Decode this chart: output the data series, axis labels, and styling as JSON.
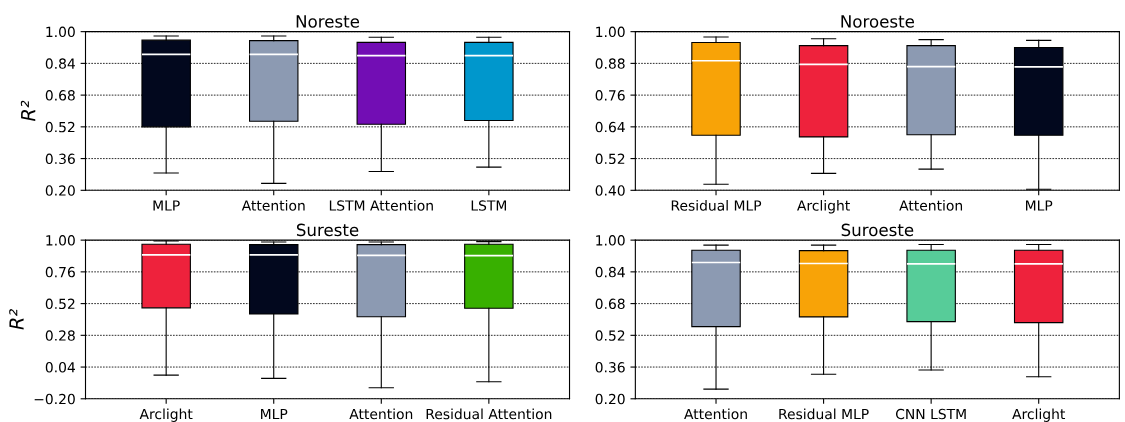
{
  "chart_data": [
    {
      "type": "box",
      "title": "Noreste",
      "ylabel": "R²",
      "categories": [
        "MLP",
        "Attention",
        "LSTM Attention",
        "LSTM"
      ],
      "colors": [
        "#02081e",
        "#8c9ab2",
        "#720db4",
        "#0097cc"
      ],
      "ylim": [
        0.2,
        1.0
      ],
      "yticks": [
        {
          "value": 0.2,
          "label": "0.20"
        },
        {
          "value": 0.36,
          "label": "0.36"
        },
        {
          "value": 0.52,
          "label": "0.52"
        },
        {
          "value": 0.68,
          "label": "0.68"
        },
        {
          "value": 0.84,
          "label": "0.84"
        },
        {
          "value": 1.0,
          "label": "1.00"
        }
      ],
      "grid": "y",
      "boxes": [
        {
          "low": 0.287,
          "q1": 0.52,
          "median": 0.885,
          "q3": 0.957,
          "high": 0.978
        },
        {
          "low": 0.235,
          "q1": 0.548,
          "median": 0.885,
          "q3": 0.955,
          "high": 0.978
        },
        {
          "low": 0.295,
          "q1": 0.533,
          "median": 0.879,
          "q3": 0.946,
          "high": 0.972
        },
        {
          "low": 0.317,
          "q1": 0.552,
          "median": 0.879,
          "q3": 0.946,
          "high": 0.972
        }
      ]
    },
    {
      "type": "box",
      "title": "Noroeste",
      "categories": [
        "Residual MLP",
        "Arclight",
        "Attention",
        "MLP"
      ],
      "colors": [
        "#f8a307",
        "#ee223c",
        "#8c9ab2",
        "#02081e"
      ],
      "ylim": [
        0.4,
        1.0
      ],
      "yticks": [
        {
          "value": 0.4,
          "label": "0.40"
        },
        {
          "value": 0.52,
          "label": "0.52"
        },
        {
          "value": 0.64,
          "label": "0.64"
        },
        {
          "value": 0.76,
          "label": "0.76"
        },
        {
          "value": 0.88,
          "label": "0.88"
        },
        {
          "value": 1.0,
          "label": "1.00"
        }
      ],
      "grid": "y",
      "boxes": [
        {
          "low": 0.423,
          "q1": 0.608,
          "median": 0.89,
          "q3": 0.959,
          "high": 0.98
        },
        {
          "low": 0.464,
          "q1": 0.602,
          "median": 0.876,
          "q3": 0.947,
          "high": 0.973
        },
        {
          "low": 0.48,
          "q1": 0.61,
          "median": 0.868,
          "q3": 0.947,
          "high": 0.97
        },
        {
          "low": 0.404,
          "q1": 0.608,
          "median": 0.867,
          "q3": 0.94,
          "high": 0.967
        }
      ]
    },
    {
      "type": "box",
      "title": "Sureste",
      "ylabel": "R²",
      "categories": [
        "Arclight",
        "MLP",
        "Attention",
        "Residual Attention"
      ],
      "colors": [
        "#ee223c",
        "#02081e",
        "#8c9ab2",
        "#38b000"
      ],
      "ylim": [
        -0.2,
        1.0
      ],
      "yticks": [
        {
          "value": -0.2,
          "label": "−0.20"
        },
        {
          "value": 0.04,
          "label": "0.04"
        },
        {
          "value": 0.28,
          "label": "0.28"
        },
        {
          "value": 0.52,
          "label": "0.52"
        },
        {
          "value": 0.76,
          "label": "0.76"
        },
        {
          "value": 1.0,
          "label": "1.00"
        }
      ],
      "grid": "y",
      "boxes": [
        {
          "low": -0.021,
          "q1": 0.488,
          "median": 0.888,
          "q3": 0.969,
          "high": 0.994
        },
        {
          "low": -0.046,
          "q1": 0.441,
          "median": 0.888,
          "q3": 0.966,
          "high": 0.986
        },
        {
          "low": -0.116,
          "q1": 0.421,
          "median": 0.885,
          "q3": 0.966,
          "high": 0.986
        },
        {
          "low": -0.071,
          "q1": 0.485,
          "median": 0.883,
          "q3": 0.969,
          "high": 0.989
        }
      ]
    },
    {
      "type": "box",
      "title": "Suroeste",
      "categories": [
        "Attention",
        "Residual MLP",
        "CNN LSTM",
        "Arclight"
      ],
      "colors": [
        "#8c9ab2",
        "#f8a307",
        "#57cc99",
        "#ee223c"
      ],
      "ylim": [
        0.2,
        1.0
      ],
      "yticks": [
        {
          "value": 0.2,
          "label": "0.20"
        },
        {
          "value": 0.36,
          "label": "0.36"
        },
        {
          "value": 0.52,
          "label": "0.52"
        },
        {
          "value": 0.68,
          "label": "0.68"
        },
        {
          "value": 0.84,
          "label": "0.84"
        },
        {
          "value": 1.0,
          "label": "1.00"
        }
      ],
      "grid": "y",
      "boxes": [
        {
          "low": 0.249,
          "q1": 0.564,
          "median": 0.887,
          "q3": 0.949,
          "high": 0.975
        },
        {
          "low": 0.324,
          "q1": 0.613,
          "median": 0.882,
          "q3": 0.947,
          "high": 0.975
        },
        {
          "low": 0.345,
          "q1": 0.589,
          "median": 0.88,
          "q3": 0.949,
          "high": 0.978
        },
        {
          "low": 0.311,
          "q1": 0.584,
          "median": 0.88,
          "q3": 0.949,
          "high": 0.978
        }
      ]
    }
  ]
}
